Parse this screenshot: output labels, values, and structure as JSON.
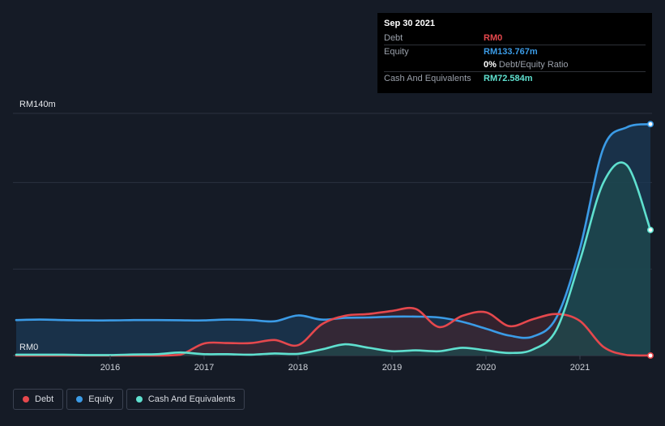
{
  "tooltip": {
    "date": "Sep 30 2021",
    "rows": [
      {
        "label": "Debt",
        "value": "RM0",
        "color": "#e5484d"
      },
      {
        "label": "Equity",
        "value": "RM133.767m",
        "color": "#3b9be6"
      },
      {
        "label": "",
        "value": "0%",
        "sub": "Debt/Equity Ratio",
        "color": "#ffffff"
      },
      {
        "label": "Cash And Equivalents",
        "value": "RM72.584m",
        "color": "#5fe0cf"
      }
    ]
  },
  "legend": [
    {
      "label": "Debt",
      "color": "#e5484d"
    },
    {
      "label": "Equity",
      "color": "#3b9be6"
    },
    {
      "label": "Cash And Equivalents",
      "color": "#5fe0cf"
    }
  ],
  "chart_data": {
    "type": "area",
    "ylabel_top": "RM140m",
    "ylabel_bottom": "RM0",
    "ylim": [
      0,
      140
    ],
    "x_ticks": [
      "2016",
      "2017",
      "2018",
      "2019",
      "2020",
      "2021"
    ],
    "x_tick_values": [
      2016,
      2017,
      2018,
      2019,
      2020,
      2021
    ],
    "xlim": [
      2015.0,
      2021.75
    ],
    "gridlines": [
      0,
      50,
      100,
      140
    ],
    "series": [
      {
        "name": "Equity",
        "color": "#3b9be6",
        "fill": "#1b3a55",
        "x": [
          2015.0,
          2015.25,
          2015.5,
          2015.75,
          2016.0,
          2016.25,
          2016.5,
          2016.75,
          2017.0,
          2017.25,
          2017.5,
          2017.75,
          2018.0,
          2018.25,
          2018.5,
          2018.75,
          2019.0,
          2019.25,
          2019.5,
          2019.75,
          2020.0,
          2020.25,
          2020.5,
          2020.75,
          2021.0,
          2021.25,
          2021.5,
          2021.75
        ],
        "y": [
          20.5,
          20.8,
          20.5,
          20.3,
          20.3,
          20.5,
          20.5,
          20.4,
          20.3,
          20.8,
          20.5,
          19.8,
          23.2,
          20.8,
          21.8,
          22.0,
          22.5,
          22.5,
          22.0,
          19.5,
          15.5,
          11.5,
          11.0,
          22.0,
          62.0,
          120.0,
          132.0,
          133.8
        ]
      },
      {
        "name": "Debt",
        "color": "#e5484d",
        "fill": "#3e2530",
        "x": [
          2015.0,
          2015.25,
          2015.5,
          2015.75,
          2016.0,
          2016.25,
          2016.5,
          2016.75,
          2017.0,
          2017.25,
          2017.5,
          2017.75,
          2018.0,
          2018.25,
          2018.5,
          2018.75,
          2019.0,
          2019.25,
          2019.5,
          2019.75,
          2020.0,
          2020.25,
          2020.5,
          2020.75,
          2021.0,
          2021.25,
          2021.5,
          2021.75
        ],
        "y": [
          0,
          0,
          0,
          0,
          0,
          0,
          0,
          0.5,
          7.0,
          7.2,
          7.2,
          9.0,
          6.0,
          18.0,
          23.0,
          24.0,
          25.8,
          27.0,
          16.5,
          23.0,
          25.0,
          17.0,
          21.0,
          24.0,
          20.0,
          5.0,
          0.3,
          0
        ]
      },
      {
        "name": "Cash And Equivalents",
        "color": "#5fe0cf",
        "fill": "#1d4a4e",
        "x": [
          2015.0,
          2015.25,
          2015.5,
          2015.75,
          2016.0,
          2016.25,
          2016.5,
          2016.75,
          2017.0,
          2017.25,
          2017.5,
          2017.75,
          2018.0,
          2018.25,
          2018.5,
          2018.75,
          2019.0,
          2019.25,
          2019.5,
          2019.75,
          2020.0,
          2020.25,
          2020.5,
          2020.75,
          2021.0,
          2021.25,
          2021.5,
          2021.75
        ],
        "y": [
          0.5,
          0.5,
          0.5,
          0.3,
          0.3,
          0.6,
          0.8,
          1.8,
          0.8,
          0.8,
          0.5,
          1.2,
          1.0,
          3.5,
          6.5,
          4.5,
          2.5,
          3.0,
          2.5,
          4.5,
          3.0,
          1.5,
          3.5,
          15.0,
          55.0,
          100.0,
          110.0,
          72.6
        ]
      }
    ]
  }
}
